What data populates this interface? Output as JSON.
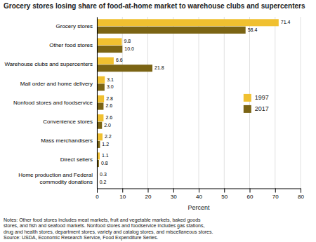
{
  "chart_data": {
    "type": "bar",
    "orientation": "horizontal",
    "title": "Grocery stores losing share of food-at-home market to warehouse clubs and supercenters",
    "categories": [
      "Grocery stores",
      "Other food stores",
      "Warehouse clubs and supercenters",
      "Mail order and home delivery",
      "Nonfood stores and foodservice",
      "Convenience stores",
      "Mass merchandisers",
      "Direct sellers",
      "Home production and Federal\ncommodity donations"
    ],
    "series": [
      {
        "name": "1997",
        "color": "#F0C030",
        "values": [
          71.4,
          9.8,
          6.6,
          3.1,
          2.8,
          2.6,
          2.2,
          1.1,
          0.3
        ],
        "value_labels": [
          "71.4",
          "9.8",
          "6.6",
          "3.1",
          "2.8",
          "2.6",
          "2.2",
          "1.1",
          "0.3"
        ]
      },
      {
        "name": "2017",
        "color": "#7B6414",
        "values": [
          58.4,
          10.0,
          21.8,
          3.0,
          2.6,
          2.0,
          1.2,
          0.8,
          0.2
        ],
        "value_labels": [
          "58.4",
          "10.0",
          "21.8",
          "3.0",
          "2.6",
          "2.0",
          "1.2",
          "0.8",
          "0.2"
        ]
      }
    ],
    "xlabel": "Percent",
    "xlim": [
      0,
      80
    ],
    "xticks": [
      0,
      10,
      20,
      30,
      40,
      50,
      60,
      70,
      80
    ],
    "grid": true,
    "legend": "right",
    "data_labels": true,
    "annotations": [
      "Notes: Other food stores includes meat markets, fruit and vegetable markets, baked goods\nstores, and fish and seafood markets. Nonfood stores and foodservice includes gas stations,\ndrug and health stores, department stores, variety and catalog stores, and miscellaneous stores.\nSource: USDA, Economic Research Service, Food Expenditure Series."
    ]
  }
}
